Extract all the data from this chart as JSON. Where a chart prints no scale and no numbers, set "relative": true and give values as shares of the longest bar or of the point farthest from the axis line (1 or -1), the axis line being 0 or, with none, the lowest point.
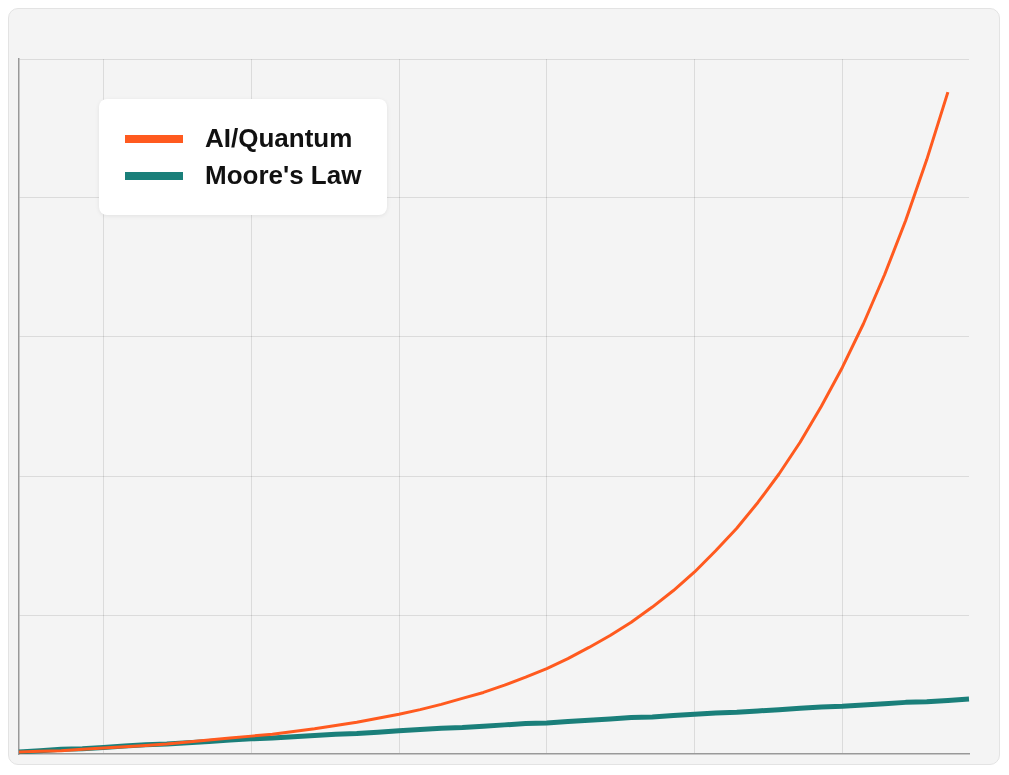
{
  "chart_data": {
    "type": "line",
    "relative": true,
    "grid": true,
    "legend": "top left",
    "marker": "none",
    "line_style": "solid",
    "categories": [
      null,
      null,
      null,
      null,
      null,
      null,
      null,
      null,
      null,
      null,
      null,
      null,
      null,
      null,
      null,
      null,
      null,
      null,
      null,
      null,
      null,
      null,
      null,
      null,
      null,
      null,
      null,
      null,
      null,
      null,
      null,
      null,
      null,
      null,
      null,
      null,
      null,
      null,
      null,
      null,
      null,
      null,
      null,
      null,
      null,
      null
    ],
    "series": [
      {
        "name": "AI/Quantum",
        "color": "#ff5a1f",
        "values": [
          0.003,
          0.004,
          0.005,
          0.007,
          0.009,
          0.011,
          0.013,
          0.015,
          0.018,
          0.021,
          0.024,
          0.027,
          0.03,
          0.034,
          0.038,
          0.043,
          0.048,
          0.054,
          0.06,
          0.067,
          0.075,
          0.084,
          0.093,
          0.104,
          0.116,
          0.129,
          0.144,
          0.161,
          0.179,
          0.199,
          0.222,
          0.247,
          0.275,
          0.307,
          0.341,
          0.38,
          0.423,
          0.471,
          0.525,
          0.584,
          0.65,
          0.724,
          0.806,
          0.898,
          1,
          null
        ]
      },
      {
        "name": "Moore's Law",
        "color": "#1a7f7a",
        "values": [
          0.003,
          0.005,
          0.007,
          0.008,
          0.01,
          0.012,
          0.014,
          0.015,
          0.017,
          0.019,
          0.021,
          0.023,
          0.024,
          0.026,
          0.028,
          0.03,
          0.031,
          0.033,
          0.035,
          0.037,
          0.039,
          0.04,
          0.042,
          0.044,
          0.046,
          0.047,
          0.049,
          0.051,
          0.053,
          0.055,
          0.056,
          0.058,
          0.06,
          0.062,
          0.063,
          0.065,
          0.067,
          0.069,
          0.071,
          0.072,
          0.074,
          0.076,
          0.078,
          0.079,
          0.081,
          0.083
        ]
      }
    ]
  }
}
